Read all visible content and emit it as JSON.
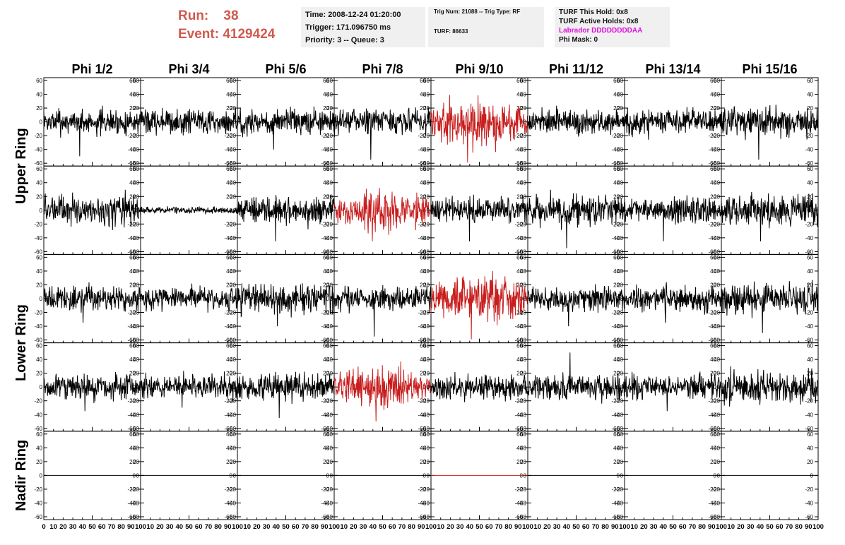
{
  "header": {
    "run_label": "Run:",
    "run_value": "38",
    "event_label": "Event:",
    "event_value": "4129424",
    "time_line": "Time: 2008-12-24 01:20:00",
    "trigger_line": "Trigger: 171.096750 ms",
    "priority_line": "Priority: 3 -- Queue: 3",
    "trig_line": "Trig Num: 21088 -- Trig Type: RF",
    "turf_line": "TURF: 86633",
    "turf_hold": "TURF This Hold: 0x8",
    "turf_active": "TURF Active Holds: 0x8",
    "labrador": "Labrador DDDDDDDDAA",
    "phi_mask": "Phi Mask: 0"
  },
  "colors": {
    "header_red": "#d05a50",
    "trace_normal": "#000000",
    "trace_triggered": "#c81e1e",
    "labrador": "#e010e0",
    "info_bg": "#f0f0f0"
  },
  "chart_data": {
    "type": "line",
    "title": "",
    "columns": [
      "Phi 1/2",
      "Phi 3/4",
      "Phi 5/6",
      "Phi 7/8",
      "Phi 9/10",
      "Phi 11/12",
      "Phi 13/14",
      "Phi 15/16"
    ],
    "ring_labels": [
      {
        "label": "Upper Ring",
        "rows": [
          0,
          1
        ]
      },
      {
        "label": "Lower Ring",
        "rows": [
          2,
          3
        ]
      },
      {
        "label": "Nadir Ring",
        "rows": [
          4
        ]
      }
    ],
    "xlim": [
      0,
      100
    ],
    "ylim": [
      -60,
      60
    ],
    "x_ticks": [
      0,
      10,
      20,
      30,
      40,
      50,
      60,
      70,
      80,
      90,
      100
    ],
    "x_tick_labels": [
      "0",
      "10",
      "20",
      "30",
      "40",
      "50",
      "60",
      "70",
      "80",
      "90",
      "100"
    ],
    "y_ticks": [
      60,
      40,
      20,
      0,
      -20,
      -40,
      -60
    ],
    "y_tick_labels": [
      "60",
      "40",
      "20",
      "0",
      "-20",
      "-40",
      "-60"
    ],
    "traces": [
      [
        {
          "amp": 20,
          "spike": -50,
          "red": false
        },
        {
          "amp": 20,
          "spike": 0,
          "red": false
        },
        {
          "amp": 22,
          "spike": -40,
          "red": false
        },
        {
          "amp": 20,
          "spike": -55,
          "red": false
        },
        {
          "amp": 35,
          "spike": -60,
          "red": true
        },
        {
          "amp": 20,
          "spike": 0,
          "red": false
        },
        {
          "amp": 22,
          "spike": 0,
          "red": false
        },
        {
          "amp": 25,
          "spike": -55,
          "red": false
        }
      ],
      [
        {
          "amp": 25,
          "spike": 0,
          "red": false
        },
        {
          "amp": 5,
          "spike": 0,
          "red": false
        },
        {
          "amp": 22,
          "spike": -45,
          "red": false
        },
        {
          "amp": 30,
          "spike": -45,
          "red": true
        },
        {
          "amp": 20,
          "spike": -45,
          "red": false
        },
        {
          "amp": 25,
          "spike": -55,
          "red": false
        },
        {
          "amp": 20,
          "spike": -45,
          "red": false
        },
        {
          "amp": 25,
          "spike": -45,
          "red": false
        }
      ],
      [
        {
          "amp": 20,
          "spike": -35,
          "red": false
        },
        {
          "amp": 18,
          "spike": 0,
          "red": false
        },
        {
          "amp": 25,
          "spike": -40,
          "red": false
        },
        {
          "amp": 20,
          "spike": -55,
          "red": false
        },
        {
          "amp": 35,
          "spike": -60,
          "red": true
        },
        {
          "amp": 20,
          "spike": -40,
          "red": false
        },
        {
          "amp": 20,
          "spike": -35,
          "red": false
        },
        {
          "amp": 25,
          "spike": -50,
          "red": false
        }
      ],
      [
        {
          "amp": 20,
          "spike": -35,
          "red": false
        },
        {
          "amp": 20,
          "spike": -30,
          "red": false
        },
        {
          "amp": 22,
          "spike": -45,
          "red": false
        },
        {
          "amp": 30,
          "spike": -50,
          "red": true
        },
        {
          "amp": 20,
          "spike": 0,
          "red": false
        },
        {
          "amp": 20,
          "spike": 50,
          "red": false
        },
        {
          "amp": 20,
          "spike": -35,
          "red": false
        },
        {
          "amp": 25,
          "spike": 0,
          "red": false
        }
      ],
      [
        {
          "amp": 0,
          "spike": 0,
          "red": false
        },
        {
          "amp": 0,
          "spike": 0,
          "red": false
        },
        {
          "amp": 0,
          "spike": 0,
          "red": false
        },
        {
          "amp": 0,
          "spike": 0,
          "red": false
        },
        {
          "amp": 0,
          "spike": 0,
          "red": true
        },
        {
          "amp": 0,
          "spike": 0,
          "red": false
        },
        {
          "amp": 0,
          "spike": 0,
          "red": false
        },
        {
          "amp": 0,
          "spike": 0,
          "red": false
        }
      ]
    ]
  }
}
